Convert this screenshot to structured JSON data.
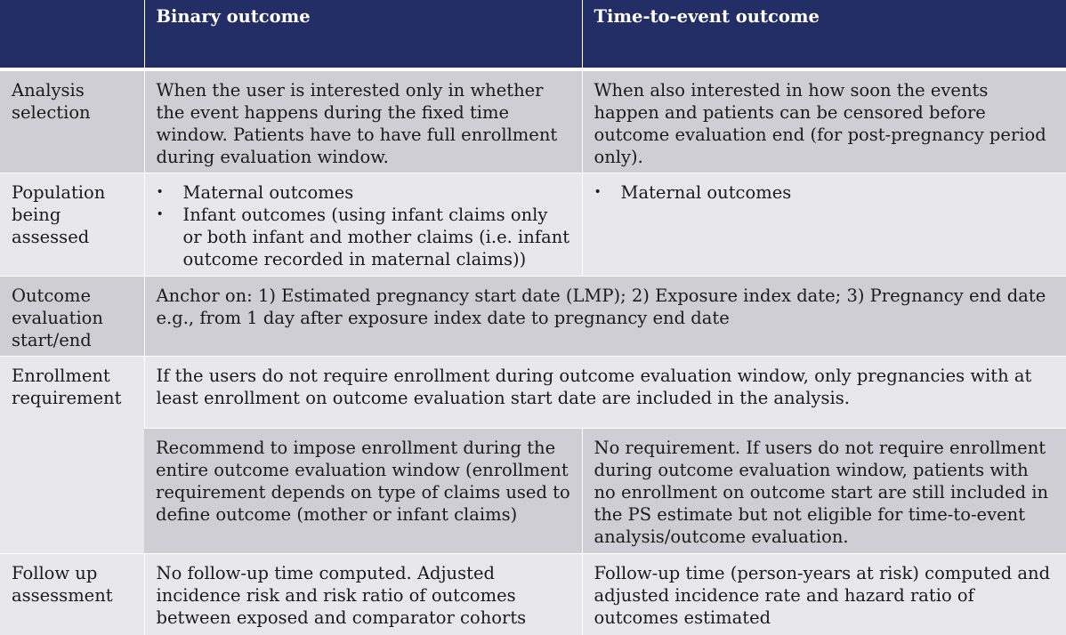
{
  "header": {
    "col0": "",
    "col1": "Binary outcome",
    "col2": "Time-to-event outcome"
  },
  "rows": {
    "analysis": {
      "label": "Analysis selection",
      "binary": "When the user is interested only in whether the event happens during the fixed time window. Patients have to have full enrollment during evaluation window.",
      "tte": "When also interested in how soon the events happen and patients can be censored before outcome evaluation end (for post-pregnancy period only)."
    },
    "population": {
      "label": "Population being assessed",
      "binary_items": [
        "Maternal outcomes",
        "Infant outcomes (using infant claims only or both infant and mother claims (i.e. infant outcome recorded in maternal claims))"
      ],
      "tte_items": [
        "Maternal outcomes"
      ]
    },
    "outcome_eval": {
      "label": "Outcome evaluation start/end",
      "text": "Anchor on: 1) Estimated pregnancy start date (LMP); 2) Exposure index date; 3) Pregnancy end date e.g., from 1 day after exposure index date to pregnancy end date"
    },
    "enrollment": {
      "label": "Enrollment requirement",
      "shared": "If the users do not require enrollment during outcome evaluation window, only pregnancies with at least enrollment on outcome evaluation start date are included in the analysis.",
      "binary": "Recommend to impose enrollment during the entire outcome evaluation window (enrollment requirement depends on type of claims used to define outcome (mother or infant claims)",
      "tte": "No requirement. If users do not require enrollment during outcome evaluation window, patients with no enrollment on outcome start are still included in the PS estimate but not eligible for time-to-event analysis/outcome evaluation."
    },
    "followup": {
      "label": "Follow up assessment",
      "binary": "No follow-up time computed. Adjusted incidence risk and risk ratio of outcomes between exposed and comparator cohorts",
      "tte": "Follow-up time (person-years at risk) computed and adjusted incidence rate and hazard ratio of outcomes estimated"
    }
  }
}
